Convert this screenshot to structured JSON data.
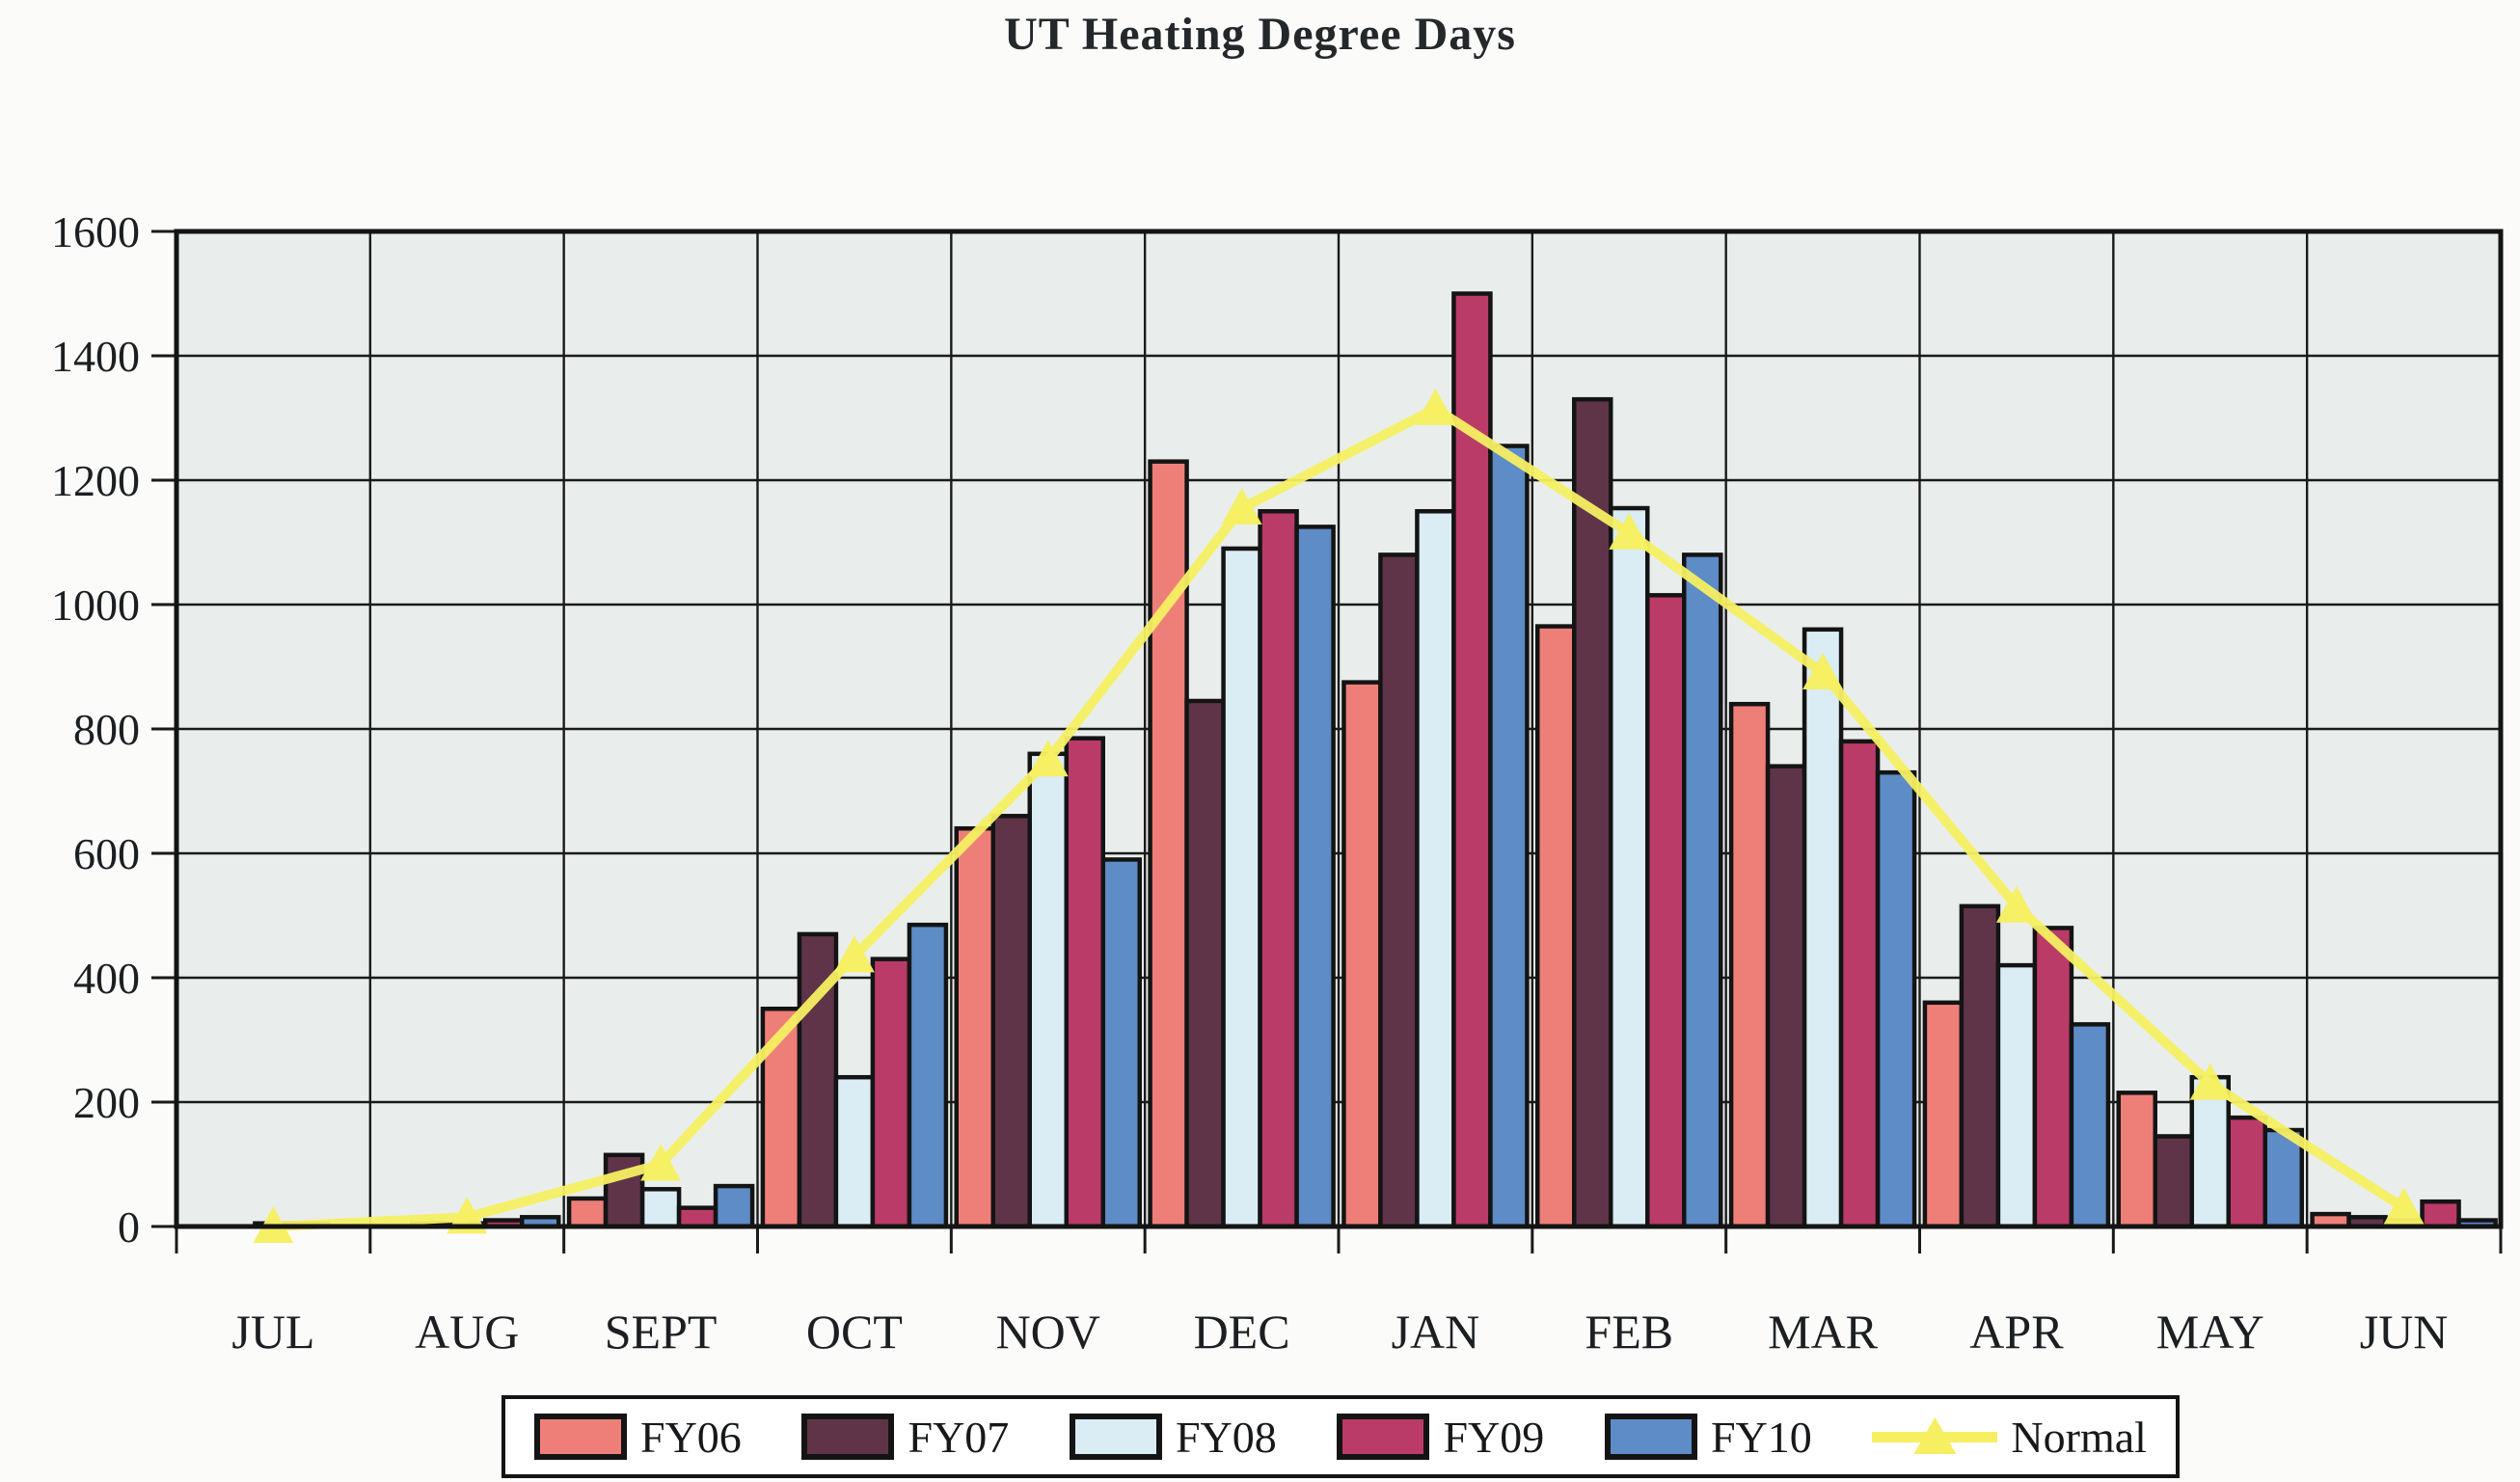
{
  "page": {
    "title": "UT Heating Degree Days"
  },
  "colors": {
    "frame": "#141414",
    "grid": "#1a1a1a",
    "plot_bg": "#e9eeec",
    "text": "#1c1f22",
    "fy06": "#ee7f78",
    "fy07": "#5f3449",
    "fy08": "#daecf4",
    "fy09": "#bb3b68",
    "fy10": "#5d8cc7",
    "normal": "#f6ef62"
  },
  "chart_data": {
    "type": "bar",
    "title": "UT Heating Degree Days",
    "categories": [
      "JUL",
      "AUG",
      "SEPT",
      "OCT",
      "NOV",
      "DEC",
      "JAN",
      "FEB",
      "MAR",
      "APR",
      "MAY",
      "JUN"
    ],
    "series": [
      {
        "name": "FY06",
        "type": "bar",
        "color": "#ee7f78",
        "values": [
          0,
          0,
          45,
          350,
          640,
          1230,
          875,
          965,
          840,
          360,
          215,
          20
        ]
      },
      {
        "name": "FY07",
        "type": "bar",
        "color": "#5f3449",
        "values": [
          0,
          5,
          115,
          470,
          660,
          845,
          1080,
          1330,
          740,
          515,
          145,
          15
        ]
      },
      {
        "name": "FY08",
        "type": "bar",
        "color": "#daecf4",
        "values": [
          5,
          5,
          60,
          240,
          760,
          1090,
          1150,
          1155,
          960,
          420,
          240,
          10
        ]
      },
      {
        "name": "FY09",
        "type": "bar",
        "color": "#bb3b68",
        "values": [
          5,
          10,
          30,
          430,
          785,
          1150,
          1500,
          1015,
          780,
          480,
          175,
          40
        ]
      },
      {
        "name": "FY10",
        "type": "bar",
        "color": "#5d8cc7",
        "values": [
          0,
          15,
          65,
          485,
          590,
          1125,
          1255,
          1080,
          730,
          325,
          155,
          10
        ]
      },
      {
        "name": "Normal",
        "type": "line",
        "color": "#f6ef62",
        "values": [
          0,
          15,
          100,
          435,
          750,
          1155,
          1315,
          1115,
          890,
          515,
          230,
          30
        ]
      }
    ],
    "xlabel": "",
    "ylabel": "",
    "ylim": [
      0,
      1600
    ],
    "ytick_step": 200,
    "y_tick_labels": [
      "0",
      "200",
      "400",
      "600",
      "800",
      "1000",
      "1200",
      "1400",
      "1600"
    ],
    "grid": true,
    "legend_position": "bottom"
  }
}
